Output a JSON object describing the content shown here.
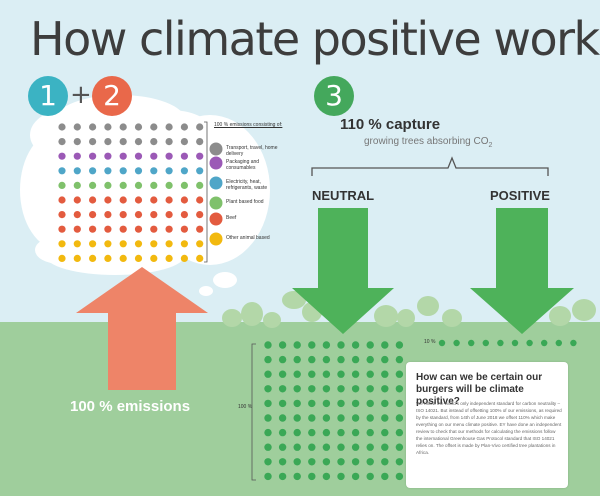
{
  "title": "How climate positive works:",
  "steps": {
    "one": "1",
    "plus": "+",
    "two": "2",
    "three": "3"
  },
  "capture": {
    "title": "110 % capture",
    "subtitle_prefix": "growing trees absorbing CO",
    "subtitle_sub": "2"
  },
  "arrows": {
    "neutral_label": "NEUTRAL",
    "positive_label": "POSITIVE"
  },
  "emissions_label": "100 % emissions",
  "percent_100": "100 %",
  "percent_10": "10 %",
  "legend": {
    "title": "100 % emissions consisting of:",
    "items": [
      {
        "label": "Transport, travel, home delivery",
        "color": "#8c8c8c",
        "rows": 2,
        "icon": "truck-icon"
      },
      {
        "label": "Packaging and consumables",
        "color": "#9b59b6",
        "rows": 1,
        "icon": "cup-icon"
      },
      {
        "label": "Electricity, heat, refrigerants, waste",
        "color": "#4fa6c8",
        "rows": 1,
        "icon": "lightning-icon"
      },
      {
        "label": "Plant based food",
        "color": "#7fc16b",
        "rows": 1,
        "icon": "leaf-icon"
      },
      {
        "label": "Beef",
        "color": "#e35b3f",
        "rows": 3,
        "icon": "flame-icon"
      },
      {
        "label": "Other animal based",
        "color": "#f2b90f",
        "rows": 2,
        "icon": "drop-icon"
      }
    ]
  },
  "card": {
    "title": "How can we be certain our burgers will be climate positive?",
    "body": "We follow the world's only independent standard for carbon neutrality – ISO 14021. But instead of offsetting 100% of our emissions, as required by the standard, from 14th of June 2018 we offset 110% which make everything on our menu climate positive. EY have done an independent review to check that our methods for calculating the emissions follow the international Greenhouse Gas Protocol standard that ISO 14021 relies on. The offset is made by Plan-Vivo certified tree plantations in Africa."
  },
  "colors": {
    "sky": "#dbeef4",
    "ground": "#9fce9c",
    "orange_arrow": "#ee8468",
    "green_arrow": "#4eb25a",
    "dot_green": "#3aa856",
    "tree_green": "#b3d7a8"
  }
}
